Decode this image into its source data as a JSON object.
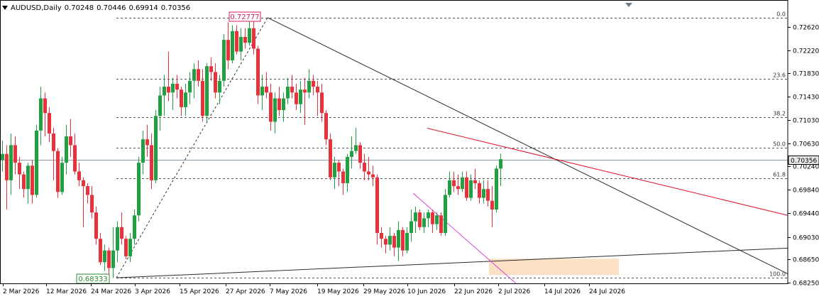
{
  "header": {
    "symbol": "AUDUSD,Daily",
    "open": "0.70248",
    "high": "0.70446",
    "low": "0.69914",
    "close": "0.70356"
  },
  "colors": {
    "bull": "#20a040",
    "bear": "#e8313a",
    "trendline": "#2b2b2b",
    "resistance": "#e0102a",
    "channel": "#e040e0",
    "zone": "#fde1c5",
    "grid_dash": "#555555",
    "price_marker_bg": "#e8e8e8",
    "high_label_border": "#d81b60",
    "low_label_border": "#2e8b2e"
  },
  "labels": {
    "high_label": "0.72777",
    "low_label": "0.68333",
    "current_price": "0.70356"
  },
  "chart_data": {
    "type": "candlestick",
    "y_range": [
      0.6825,
      0.7296
    ],
    "y_ticks": [
      "0.72620",
      "0.72220",
      "0.71830",
      "0.71430",
      "0.71030",
      "0.70630",
      "0.70240",
      "0.69840",
      "0.69440",
      "0.69030",
      "0.68650",
      "0.68250"
    ],
    "x_tick_labels": [
      "2 Mar 2026",
      "12 Mar 2026",
      "24 Mar 2026",
      "3 Apr 2026",
      "15 Apr 2026",
      "27 Apr 2026",
      "7 May 2026",
      "19 May 2026",
      "29 May 2026",
      "10 Jun 2026",
      "22 Jun 2026",
      "2 Jul 2026",
      "14 Jul 2026",
      "24 Jul 2026"
    ],
    "fibonacci": {
      "high": 0.72777,
      "low": 0.68333,
      "levels": [
        {
          "label": "0.0",
          "ratio": 0.0
        },
        {
          "label": "23.6",
          "ratio": 0.236
        },
        {
          "label": "38.2",
          "ratio": 0.382
        },
        {
          "label": "50.0",
          "ratio": 0.5
        },
        {
          "label": "61.8",
          "ratio": 0.618
        },
        {
          "label": "100.0",
          "ratio": 1.0
        }
      ]
    },
    "current_price": 0.70356,
    "candles": [
      {
        "o": 0.7035,
        "h": 0.7068,
        "l": 0.7015,
        "c": 0.7045
      },
      {
        "o": 0.7045,
        "h": 0.706,
        "l": 0.695,
        "c": 0.7
      },
      {
        "o": 0.7,
        "h": 0.708,
        "l": 0.6975,
        "c": 0.706
      },
      {
        "o": 0.706,
        "h": 0.7075,
        "l": 0.701,
        "c": 0.703
      },
      {
        "o": 0.703,
        "h": 0.704,
        "l": 0.6985,
        "c": 0.701
      },
      {
        "o": 0.701,
        "h": 0.7015,
        "l": 0.697,
        "c": 0.6985
      },
      {
        "o": 0.6985,
        "h": 0.703,
        "l": 0.696,
        "c": 0.7025
      },
      {
        "o": 0.7025,
        "h": 0.7035,
        "l": 0.696,
        "c": 0.6975
      },
      {
        "o": 0.6975,
        "h": 0.7095,
        "l": 0.697,
        "c": 0.7085
      },
      {
        "o": 0.7085,
        "h": 0.716,
        "l": 0.706,
        "c": 0.714
      },
      {
        "o": 0.714,
        "h": 0.715,
        "l": 0.7075,
        "c": 0.7115
      },
      {
        "o": 0.7115,
        "h": 0.7125,
        "l": 0.7065,
        "c": 0.708
      },
      {
        "o": 0.708,
        "h": 0.709,
        "l": 0.7,
        "c": 0.705
      },
      {
        "o": 0.705,
        "h": 0.7055,
        "l": 0.697,
        "c": 0.698
      },
      {
        "o": 0.698,
        "h": 0.704,
        "l": 0.6975,
        "c": 0.703
      },
      {
        "o": 0.703,
        "h": 0.7095,
        "l": 0.701,
        "c": 0.7075
      },
      {
        "o": 0.7075,
        "h": 0.7105,
        "l": 0.704,
        "c": 0.706
      },
      {
        "o": 0.706,
        "h": 0.708,
        "l": 0.701,
        "c": 0.7015
      },
      {
        "o": 0.7015,
        "h": 0.703,
        "l": 0.699,
        "c": 0.7
      },
      {
        "o": 0.7,
        "h": 0.7005,
        "l": 0.692,
        "c": 0.699
      },
      {
        "o": 0.699,
        "h": 0.6995,
        "l": 0.696,
        "c": 0.6975
      },
      {
        "o": 0.6975,
        "h": 0.699,
        "l": 0.6935,
        "c": 0.6945
      },
      {
        "o": 0.6945,
        "h": 0.6955,
        "l": 0.689,
        "c": 0.69
      },
      {
        "o": 0.69,
        "h": 0.691,
        "l": 0.6855,
        "c": 0.686
      },
      {
        "o": 0.686,
        "h": 0.689,
        "l": 0.6845,
        "c": 0.688
      },
      {
        "o": 0.688,
        "h": 0.6885,
        "l": 0.6835,
        "c": 0.685
      },
      {
        "o": 0.685,
        "h": 0.692,
        "l": 0.6833,
        "c": 0.688
      },
      {
        "o": 0.688,
        "h": 0.693,
        "l": 0.686,
        "c": 0.692
      },
      {
        "o": 0.692,
        "h": 0.6945,
        "l": 0.689,
        "c": 0.69
      },
      {
        "o": 0.69,
        "h": 0.6905,
        "l": 0.6865,
        "c": 0.687
      },
      {
        "o": 0.687,
        "h": 0.691,
        "l": 0.686,
        "c": 0.69
      },
      {
        "o": 0.69,
        "h": 0.695,
        "l": 0.689,
        "c": 0.694
      },
      {
        "o": 0.694,
        "h": 0.704,
        "l": 0.693,
        "c": 0.703
      },
      {
        "o": 0.703,
        "h": 0.7085,
        "l": 0.701,
        "c": 0.707
      },
      {
        "o": 0.707,
        "h": 0.7095,
        "l": 0.704,
        "c": 0.706
      },
      {
        "o": 0.706,
        "h": 0.708,
        "l": 0.6985,
        "c": 0.7
      },
      {
        "o": 0.7,
        "h": 0.712,
        "l": 0.6995,
        "c": 0.711
      },
      {
        "o": 0.711,
        "h": 0.716,
        "l": 0.7085,
        "c": 0.7145
      },
      {
        "o": 0.7145,
        "h": 0.718,
        "l": 0.711,
        "c": 0.716
      },
      {
        "o": 0.716,
        "h": 0.722,
        "l": 0.7135,
        "c": 0.715
      },
      {
        "o": 0.715,
        "h": 0.7175,
        "l": 0.712,
        "c": 0.7165
      },
      {
        "o": 0.7165,
        "h": 0.718,
        "l": 0.714,
        "c": 0.7155
      },
      {
        "o": 0.7155,
        "h": 0.716,
        "l": 0.711,
        "c": 0.7125
      },
      {
        "o": 0.7125,
        "h": 0.7165,
        "l": 0.711,
        "c": 0.715
      },
      {
        "o": 0.715,
        "h": 0.7185,
        "l": 0.713,
        "c": 0.717
      },
      {
        "o": 0.717,
        "h": 0.72,
        "l": 0.714,
        "c": 0.719
      },
      {
        "o": 0.719,
        "h": 0.7205,
        "l": 0.716,
        "c": 0.717
      },
      {
        "o": 0.717,
        "h": 0.719,
        "l": 0.71,
        "c": 0.711
      },
      {
        "o": 0.711,
        "h": 0.72,
        "l": 0.71,
        "c": 0.7195
      },
      {
        "o": 0.7195,
        "h": 0.721,
        "l": 0.717,
        "c": 0.7185
      },
      {
        "o": 0.7185,
        "h": 0.72,
        "l": 0.714,
        "c": 0.715
      },
      {
        "o": 0.715,
        "h": 0.718,
        "l": 0.713,
        "c": 0.717
      },
      {
        "o": 0.717,
        "h": 0.725,
        "l": 0.716,
        "c": 0.724
      },
      {
        "o": 0.724,
        "h": 0.727,
        "l": 0.719,
        "c": 0.7205
      },
      {
        "o": 0.7205,
        "h": 0.7265,
        "l": 0.72,
        "c": 0.7255
      },
      {
        "o": 0.7255,
        "h": 0.7265,
        "l": 0.7215,
        "c": 0.722
      },
      {
        "o": 0.722,
        "h": 0.726,
        "l": 0.7205,
        "c": 0.7245
      },
      {
        "o": 0.7245,
        "h": 0.726,
        "l": 0.7225,
        "c": 0.7235
      },
      {
        "o": 0.7235,
        "h": 0.7275,
        "l": 0.723,
        "c": 0.726
      },
      {
        "o": 0.726,
        "h": 0.7278,
        "l": 0.7215,
        "c": 0.7225
      },
      {
        "o": 0.7225,
        "h": 0.723,
        "l": 0.713,
        "c": 0.7145
      },
      {
        "o": 0.7145,
        "h": 0.718,
        "l": 0.712,
        "c": 0.716
      },
      {
        "o": 0.716,
        "h": 0.7185,
        "l": 0.714,
        "c": 0.715
      },
      {
        "o": 0.715,
        "h": 0.7165,
        "l": 0.7085,
        "c": 0.71
      },
      {
        "o": 0.71,
        "h": 0.715,
        "l": 0.708,
        "c": 0.714
      },
      {
        "o": 0.714,
        "h": 0.716,
        "l": 0.711,
        "c": 0.712
      },
      {
        "o": 0.712,
        "h": 0.715,
        "l": 0.71,
        "c": 0.714
      },
      {
        "o": 0.714,
        "h": 0.7175,
        "l": 0.713,
        "c": 0.716
      },
      {
        "o": 0.716,
        "h": 0.718,
        "l": 0.714,
        "c": 0.715
      },
      {
        "o": 0.715,
        "h": 0.7165,
        "l": 0.712,
        "c": 0.713
      },
      {
        "o": 0.713,
        "h": 0.717,
        "l": 0.7115,
        "c": 0.7155
      },
      {
        "o": 0.7155,
        "h": 0.7175,
        "l": 0.7095,
        "c": 0.715
      },
      {
        "o": 0.715,
        "h": 0.719,
        "l": 0.714,
        "c": 0.717
      },
      {
        "o": 0.717,
        "h": 0.718,
        "l": 0.7145,
        "c": 0.716
      },
      {
        "o": 0.716,
        "h": 0.717,
        "l": 0.711,
        "c": 0.715
      },
      {
        "o": 0.715,
        "h": 0.7165,
        "l": 0.71,
        "c": 0.7115
      },
      {
        "o": 0.7115,
        "h": 0.712,
        "l": 0.706,
        "c": 0.707
      },
      {
        "o": 0.707,
        "h": 0.708,
        "l": 0.7,
        "c": 0.7005
      },
      {
        "o": 0.7005,
        "h": 0.704,
        "l": 0.6985,
        "c": 0.703
      },
      {
        "o": 0.703,
        "h": 0.7035,
        "l": 0.699,
        "c": 0.7015
      },
      {
        "o": 0.7015,
        "h": 0.702,
        "l": 0.6975,
        "c": 0.6995
      },
      {
        "o": 0.6995,
        "h": 0.7045,
        "l": 0.698,
        "c": 0.704
      },
      {
        "o": 0.704,
        "h": 0.7075,
        "l": 0.702,
        "c": 0.705
      },
      {
        "o": 0.705,
        "h": 0.709,
        "l": 0.7045,
        "c": 0.706
      },
      {
        "o": 0.706,
        "h": 0.7065,
        "l": 0.702,
        "c": 0.703
      },
      {
        "o": 0.703,
        "h": 0.7045,
        "l": 0.7,
        "c": 0.7015
      },
      {
        "o": 0.7015,
        "h": 0.704,
        "l": 0.7,
        "c": 0.701
      },
      {
        "o": 0.701,
        "h": 0.7025,
        "l": 0.699,
        "c": 0.7005
      },
      {
        "o": 0.7005,
        "h": 0.701,
        "l": 0.689,
        "c": 0.691
      },
      {
        "o": 0.691,
        "h": 0.692,
        "l": 0.6885,
        "c": 0.69
      },
      {
        "o": 0.69,
        "h": 0.6905,
        "l": 0.6875,
        "c": 0.689
      },
      {
        "o": 0.689,
        "h": 0.692,
        "l": 0.688,
        "c": 0.6905
      },
      {
        "o": 0.6905,
        "h": 0.691,
        "l": 0.687,
        "c": 0.6885
      },
      {
        "o": 0.6885,
        "h": 0.693,
        "l": 0.6862,
        "c": 0.6915
      },
      {
        "o": 0.6915,
        "h": 0.692,
        "l": 0.687,
        "c": 0.688
      },
      {
        "o": 0.688,
        "h": 0.692,
        "l": 0.6875,
        "c": 0.691
      },
      {
        "o": 0.691,
        "h": 0.695,
        "l": 0.6895,
        "c": 0.693
      },
      {
        "o": 0.693,
        "h": 0.6955,
        "l": 0.691,
        "c": 0.6945
      },
      {
        "o": 0.6945,
        "h": 0.695,
        "l": 0.6915,
        "c": 0.692
      },
      {
        "o": 0.692,
        "h": 0.6945,
        "l": 0.691,
        "c": 0.6935
      },
      {
        "o": 0.6935,
        "h": 0.695,
        "l": 0.692,
        "c": 0.6945
      },
      {
        "o": 0.6945,
        "h": 0.695,
        "l": 0.691,
        "c": 0.6925
      },
      {
        "o": 0.6925,
        "h": 0.6945,
        "l": 0.6915,
        "c": 0.694
      },
      {
        "o": 0.694,
        "h": 0.6945,
        "l": 0.6905,
        "c": 0.691
      },
      {
        "o": 0.691,
        "h": 0.6985,
        "l": 0.6905,
        "c": 0.6975
      },
      {
        "o": 0.6975,
        "h": 0.7015,
        "l": 0.697,
        "c": 0.7
      },
      {
        "o": 0.7,
        "h": 0.7015,
        "l": 0.698,
        "c": 0.699
      },
      {
        "o": 0.699,
        "h": 0.701,
        "l": 0.6975,
        "c": 0.6985
      },
      {
        "o": 0.6985,
        "h": 0.7015,
        "l": 0.698,
        "c": 0.7005
      },
      {
        "o": 0.7005,
        "h": 0.7015,
        "l": 0.6965,
        "c": 0.697
      },
      {
        "o": 0.697,
        "h": 0.701,
        "l": 0.6965,
        "c": 0.7
      },
      {
        "o": 0.7,
        "h": 0.702,
        "l": 0.6985,
        "c": 0.6995
      },
      {
        "o": 0.6995,
        "h": 0.7,
        "l": 0.696,
        "c": 0.697
      },
      {
        "o": 0.697,
        "h": 0.7,
        "l": 0.696,
        "c": 0.6985
      },
      {
        "o": 0.6985,
        "h": 0.7,
        "l": 0.6955,
        "c": 0.6965
      },
      {
        "o": 0.6965,
        "h": 0.699,
        "l": 0.692,
        "c": 0.695
      },
      {
        "o": 0.695,
        "h": 0.7025,
        "l": 0.6945,
        "c": 0.702
      },
      {
        "o": 0.702,
        "h": 0.7045,
        "l": 0.699,
        "c": 0.7036
      }
    ],
    "drawings": [
      {
        "name": "descending-trendline",
        "x1": 0.7278,
        "x2": 0.688,
        "note": "from May high down-right"
      },
      {
        "name": "rising-support-line",
        "from": 0.68333,
        "to": 0.6884
      },
      {
        "name": "red-resistance-line",
        "from": 0.7089,
        "to": 0.694
      },
      {
        "name": "magenta-channel-line",
        "from": 0.698,
        "to": 0.6825
      },
      {
        "name": "dashed-rally-line",
        "from": 0.68333,
        "to": 0.72777
      },
      {
        "name": "demand-zone",
        "top": 0.6866,
        "bottom": 0.6838
      }
    ]
  }
}
